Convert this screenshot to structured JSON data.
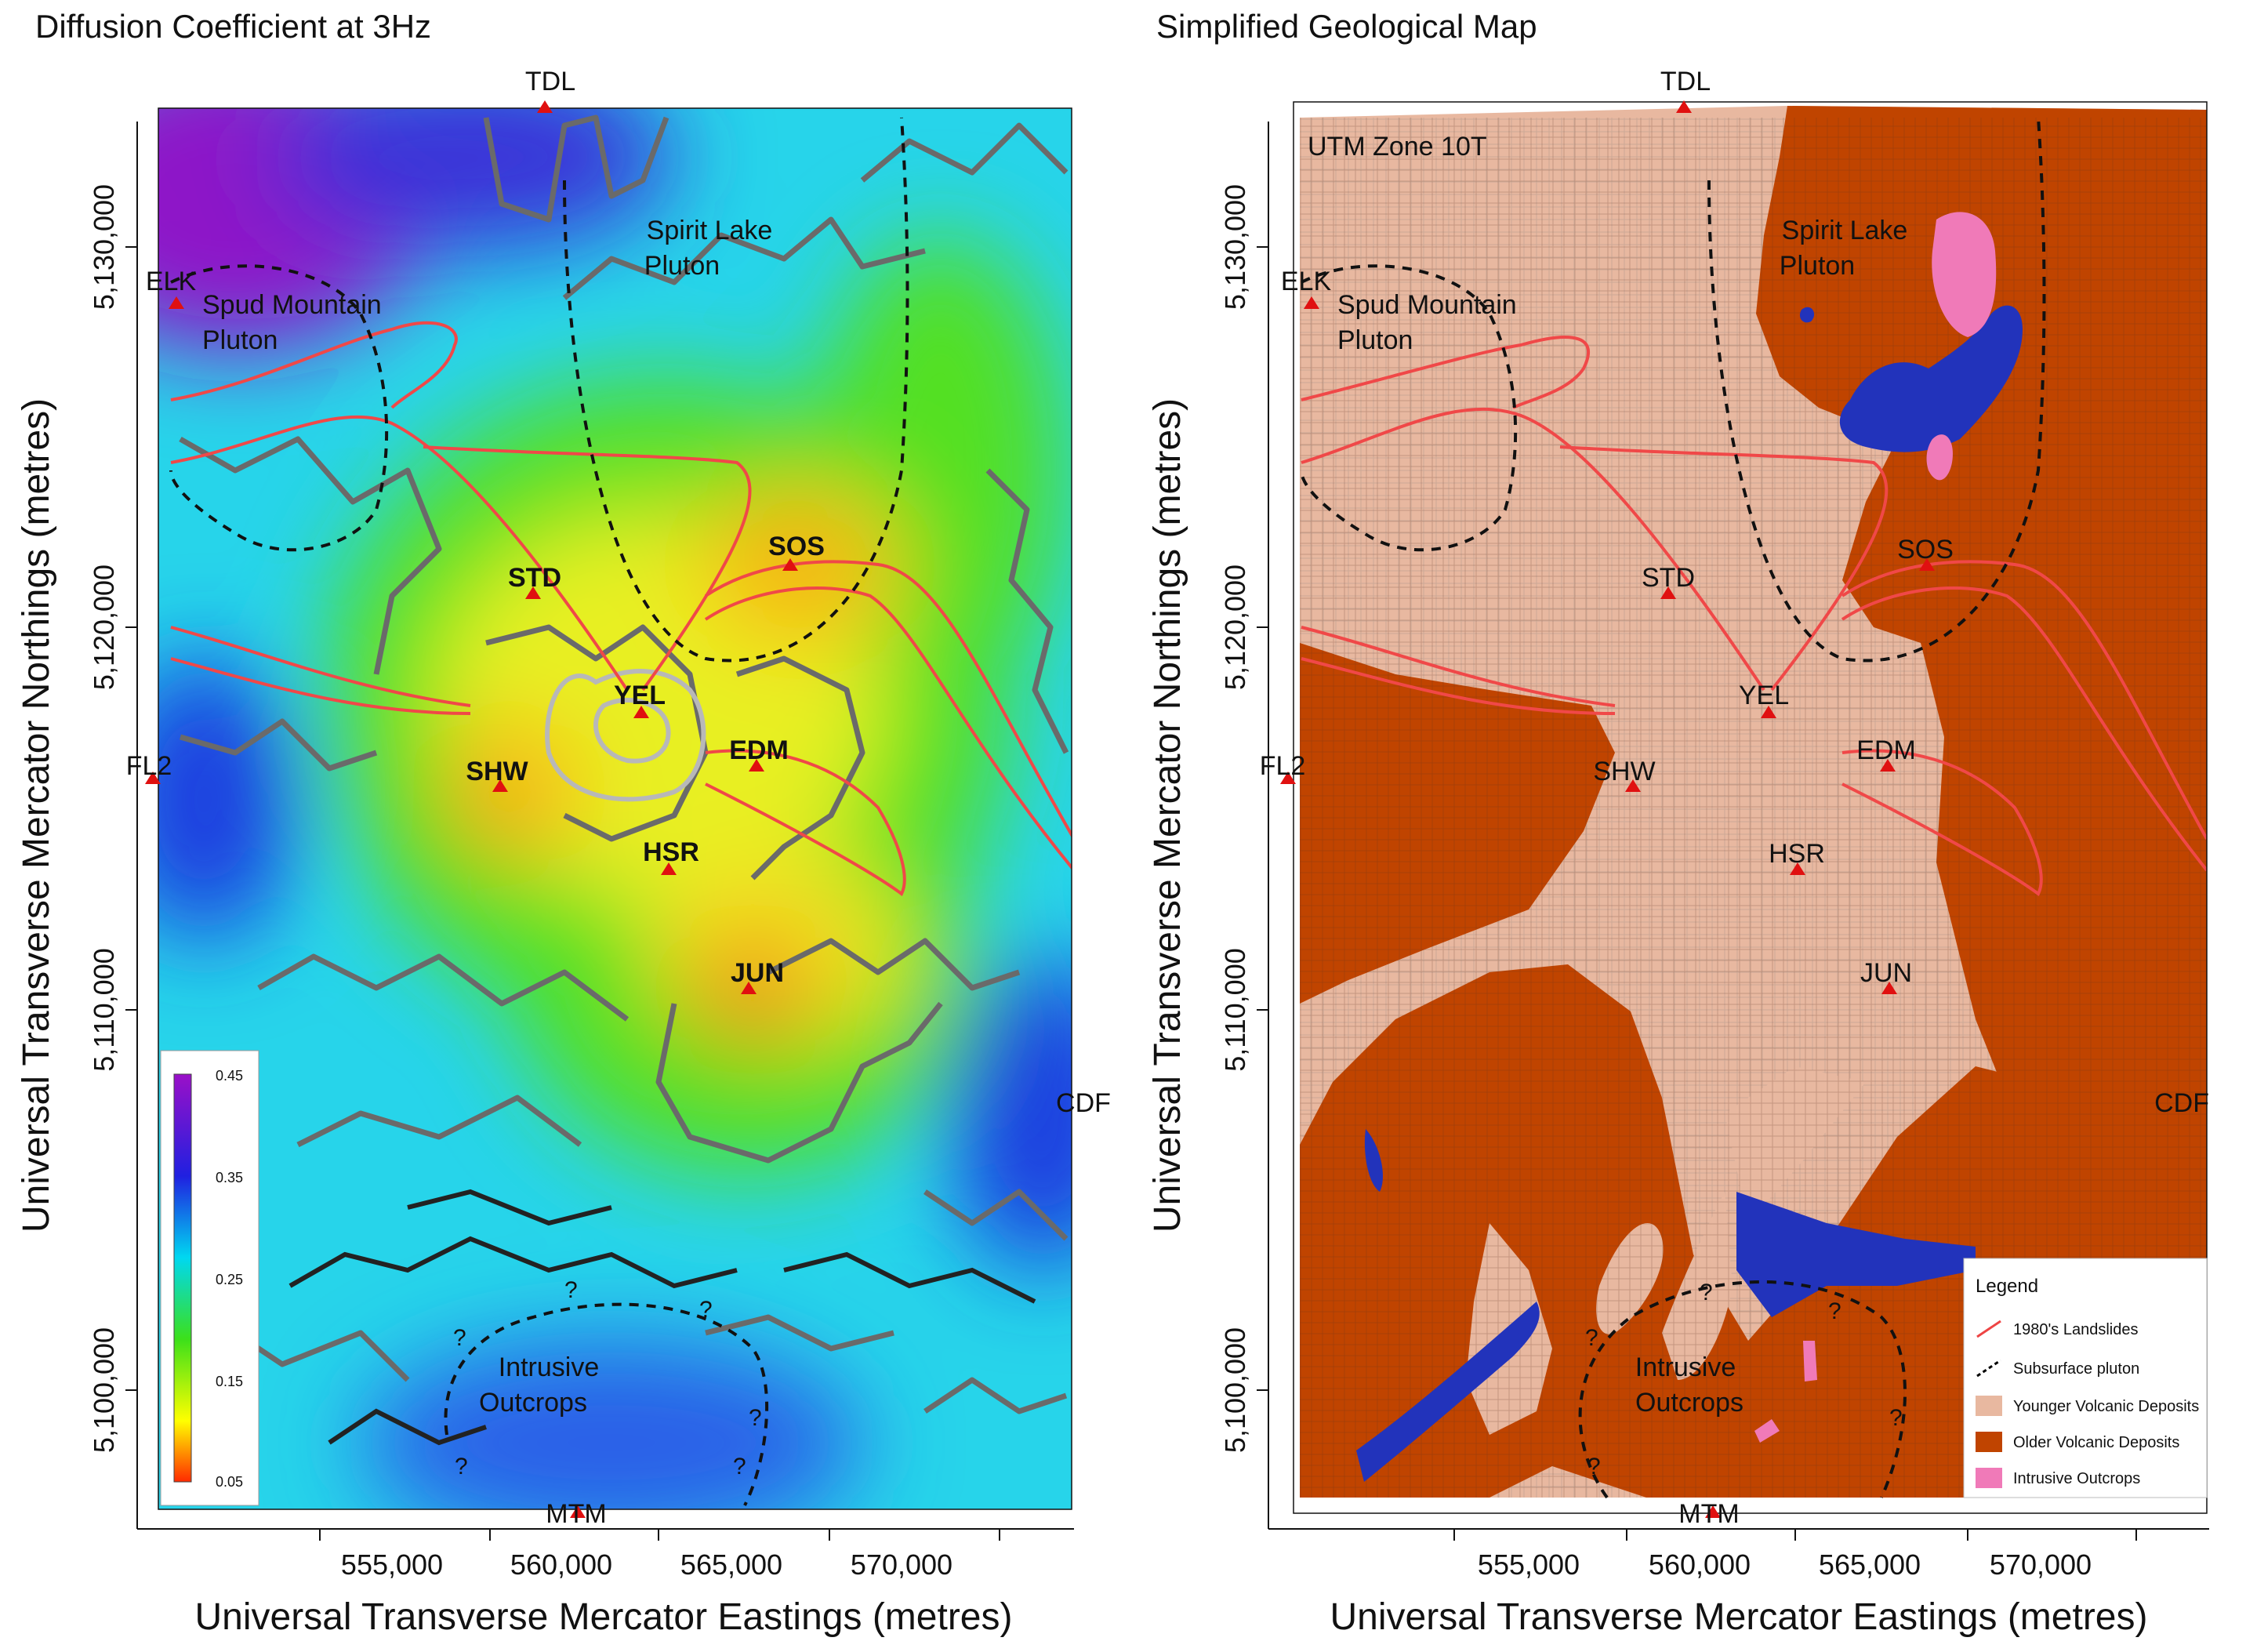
{
  "left_panel": {
    "title": "Diffusion Coefficient at 3Hz",
    "x_axis_label": "Universal Transverse Mercator Eastings (metres)",
    "y_axis_label": "Universal Transverse Mercator Northings (metres)",
    "x_ticks": [
      "555,000",
      "560,000",
      "565,000",
      "570,000"
    ],
    "y_ticks": [
      "5,130,000",
      "5,120,000",
      "5,110,000",
      "5,100,000"
    ],
    "colorbar": {
      "ticks": [
        "0.45",
        "0.35",
        "0.25",
        "0.15",
        "0.05"
      ],
      "colors": [
        "#9a10c8",
        "#2020e0",
        "#00d8f0",
        "#3ce01a",
        "#ffff00",
        "#ff2a00"
      ]
    },
    "stations": [
      "TDL",
      "ELK",
      "STD",
      "SOS",
      "YEL",
      "SHW",
      "EDM",
      "HSR",
      "FL2",
      "JUN",
      "CDF",
      "MTM"
    ],
    "labels": {
      "spirit_lake": [
        "Spirit Lake",
        "Pluton"
      ],
      "spud_mountain": [
        "Spud Mountain",
        "Pluton"
      ],
      "intrusive": [
        "Intrusive",
        "Outcrops"
      ]
    },
    "question_mark": "?"
  },
  "right_panel": {
    "title": "Simplified Geological Map",
    "x_axis_label": "Universal Transverse Mercator Eastings (metres)",
    "y_axis_label": "Universal Transverse Mercator Northings (metres)",
    "x_ticks": [
      "555,000",
      "560,000",
      "565,000",
      "570,000"
    ],
    "y_ticks": [
      "5,130,000",
      "5,120,000",
      "5,110,000",
      "5,100,000"
    ],
    "utm_zone": "UTM Zone 10T",
    "stations": [
      "TDL",
      "ELK",
      "STD",
      "SOS",
      "YEL",
      "SHW",
      "EDM",
      "HSR",
      "FL2",
      "JUN",
      "CDF",
      "MTM"
    ],
    "labels": {
      "spirit_lake": [
        "Spirit Lake",
        "Pluton"
      ],
      "spud_mountain": [
        "Spud Mountain",
        "Pluton"
      ],
      "intrusive": [
        "Intrusive",
        "Outcrops"
      ]
    },
    "question_mark": "?",
    "legend": {
      "title": "Legend",
      "items": [
        {
          "label": "1980's Landslides",
          "color": "#ee4444",
          "kind": "line"
        },
        {
          "label": "Subsurface pluton",
          "color": "#000000",
          "kind": "dash"
        },
        {
          "label": "Younger Volcanic Deposits",
          "color": "#e8b8a0",
          "kind": "fill"
        },
        {
          "label": "Older Volcanic Deposits",
          "color": "#c04400",
          "kind": "fill"
        },
        {
          "label": "Intrusive Outcrops",
          "color": "#f07ab8",
          "kind": "fill"
        }
      ]
    }
  },
  "colors": {
    "station_marker": "#e01010",
    "landslide": "#f04848",
    "younger": "#e8b8a0",
    "older": "#c04400",
    "water": "#2233bb",
    "intrusive": "#f07ab8"
  }
}
